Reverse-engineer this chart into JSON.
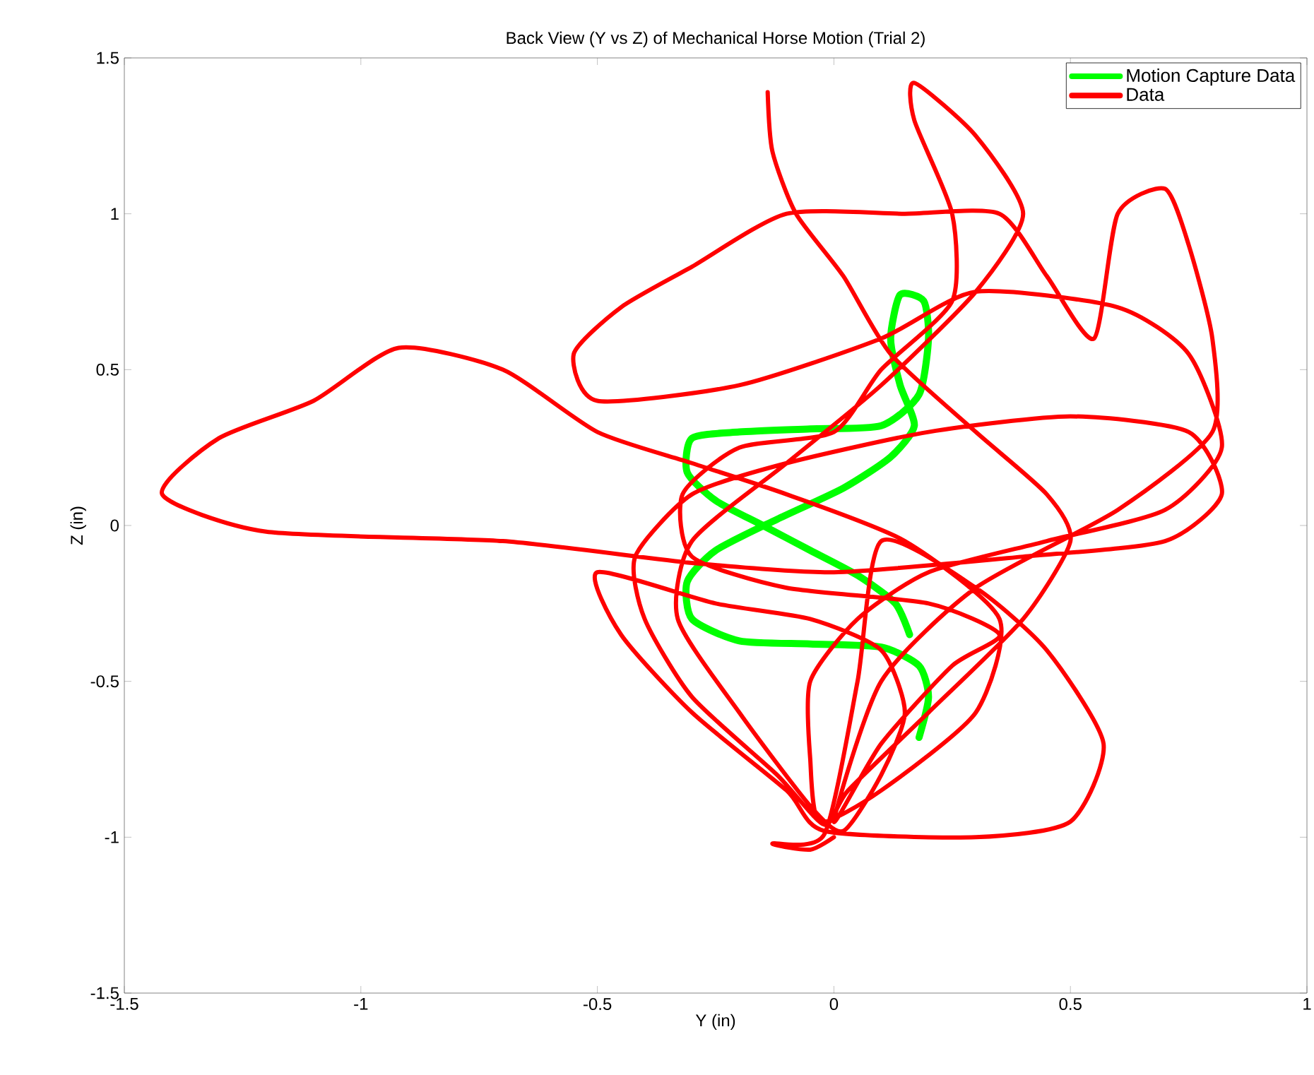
{
  "chart_data": {
    "type": "line",
    "title": "Back View (Y vs Z) of Mechanical Horse Motion (Trial 2)",
    "xlabel": "Y (in)",
    "ylabel": "Z (in)",
    "xlim": [
      -1.5,
      1
    ],
    "ylim": [
      -1.5,
      1.5
    ],
    "xticks": [
      -1.5,
      -1,
      -0.5,
      0,
      0.5,
      1
    ],
    "yticks": [
      -1.5,
      -1,
      -0.5,
      0,
      0.5,
      1,
      1.5
    ],
    "legend": "top right",
    "grid": false,
    "marker": "none",
    "line_style": "solid",
    "series": [
      {
        "name": "Motion Capture Data",
        "color": "#00ff00",
        "x": [
          0.18,
          0.2,
          0.18,
          0.1,
          -0.05,
          -0.2,
          -0.3,
          -0.31,
          -0.25,
          -0.12,
          0.02,
          0.12,
          0.17,
          0.14,
          0.12,
          0.14,
          0.19,
          0.2,
          0.18,
          0.1,
          -0.05,
          -0.2,
          -0.3,
          -0.31,
          -0.25,
          -0.15,
          -0.05,
          0.05,
          0.13,
          0.16
        ],
        "values": [
          -0.68,
          -0.55,
          -0.45,
          -0.39,
          -0.38,
          -0.37,
          -0.3,
          -0.18,
          -0.08,
          0.02,
          0.12,
          0.22,
          0.32,
          0.45,
          0.6,
          0.74,
          0.72,
          0.6,
          0.42,
          0.32,
          0.31,
          0.3,
          0.28,
          0.17,
          0.08,
          0.0,
          -0.08,
          -0.16,
          -0.25,
          -0.35
        ]
      },
      {
        "name": "Data",
        "color": "#ff0000",
        "x": [
          -0.14,
          -0.13,
          -0.08,
          0.02,
          0.12,
          0.3,
          0.45,
          0.5,
          0.4,
          0.2,
          0.03,
          -0.02,
          -0.12,
          -0.3,
          -0.4,
          -0.42,
          -0.3,
          -0.1,
          0.2,
          0.5,
          0.75,
          0.82,
          0.7,
          0.4,
          0.0,
          -0.3,
          -0.7,
          -1.2,
          -1.42,
          -1.3,
          -1.1,
          -0.92,
          -0.7,
          -0.5,
          -0.3,
          -0.1,
          0.15,
          0.35,
          0.3,
          0.1,
          -0.03,
          -0.05,
          -0.05,
          0.05,
          0.2,
          0.45,
          0.7,
          0.82,
          0.75,
          0.6,
          0.3,
          0.1,
          -0.2,
          -0.5,
          -0.55,
          -0.45,
          -0.3,
          -0.1,
          0.15,
          0.35,
          0.45,
          0.55,
          0.6,
          0.7,
          0.75,
          0.8,
          0.8,
          0.6,
          0.3,
          0.1,
          0.0,
          0.1,
          0.25,
          0.35,
          0.2,
          -0.1,
          -0.3,
          -0.32,
          -0.2,
          0.0,
          0.1,
          0.25,
          0.25,
          0.17,
          0.17,
          0.3,
          0.4,
          0.3,
          0.1,
          -0.1,
          -0.3,
          -0.33,
          -0.2,
          -0.05,
          0.02,
          0.1,
          0.15,
          0.1,
          -0.05,
          -0.25,
          -0.5,
          -0.45,
          -0.3,
          -0.1,
          -0.02,
          0.3,
          0.5,
          0.57,
          0.45,
          0.3,
          0.1,
          0.05,
          -0.02,
          -0.13,
          -0.05,
          0.0
        ],
        "values": [
          1.39,
          1.2,
          1.0,
          0.8,
          0.55,
          0.3,
          0.1,
          -0.05,
          -0.3,
          -0.6,
          -0.85,
          -0.96,
          -0.8,
          -0.55,
          -0.3,
          -0.1,
          0.1,
          0.2,
          0.3,
          0.35,
          0.3,
          0.1,
          -0.05,
          -0.1,
          -0.15,
          -0.12,
          -0.05,
          -0.02,
          0.1,
          0.28,
          0.4,
          0.57,
          0.5,
          0.3,
          0.2,
          0.1,
          -0.05,
          -0.3,
          -0.6,
          -0.85,
          -0.95,
          -0.75,
          -0.5,
          -0.3,
          -0.15,
          -0.05,
          0.05,
          0.25,
          0.55,
          0.7,
          0.75,
          0.6,
          0.45,
          0.4,
          0.55,
          0.7,
          0.83,
          1.0,
          1.0,
          1.0,
          0.8,
          0.6,
          1.0,
          1.08,
          0.9,
          0.6,
          0.3,
          0.05,
          -0.2,
          -0.5,
          -0.95,
          -0.7,
          -0.45,
          -0.35,
          -0.25,
          -0.2,
          -0.1,
          0.1,
          0.25,
          0.3,
          0.5,
          0.72,
          1.0,
          1.3,
          1.42,
          1.25,
          1.0,
          0.75,
          0.45,
          0.2,
          -0.05,
          -0.3,
          -0.6,
          -0.9,
          -0.98,
          -0.8,
          -0.6,
          -0.4,
          -0.3,
          -0.25,
          -0.15,
          -0.35,
          -0.6,
          -0.85,
          -0.98,
          -1.0,
          -0.95,
          -0.7,
          -0.4,
          -0.2,
          -0.05,
          -0.5,
          -0.99,
          -1.02,
          -1.04,
          -1.0
        ]
      }
    ]
  }
}
